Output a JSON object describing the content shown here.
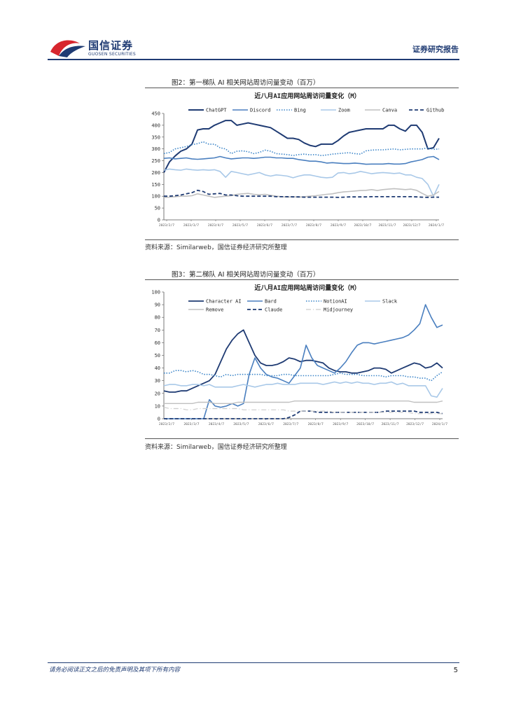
{
  "header": {
    "logo_cn": "国信证券",
    "logo_en": "GUOSEN SECURITIES",
    "report_type": "证券研究报告",
    "brand_color": "#1f3b73",
    "logo_red": "#d7262e"
  },
  "figures": [
    {
      "title": "图2：第一梯队 AI 相关网站周访问量变动（百万）",
      "source": "资料来源：Similarweb，国信证券经济研究所整理"
    },
    {
      "title": "图3：第二梯队 AI 相关网站周访问量变动（百万）",
      "source": "资料来源：Similarweb，国信证券经济研究所整理"
    }
  ],
  "footer": {
    "disclaimer": "请务必阅读正文之后的免责声明及其项下所有内容",
    "page_number": "5"
  },
  "chart_data": [
    {
      "type": "line",
      "title": "近八月AI应用网站周访问量变化（M）",
      "xlabel": "",
      "ylabel": "",
      "ylim": [
        0,
        450
      ],
      "yticks": [
        0,
        50,
        100,
        150,
        200,
        250,
        300,
        350,
        400,
        450
      ],
      "xtick_labels": [
        "2023/2/7",
        "2023/3/7",
        "2023/4/7",
        "2023/5/7",
        "2023/6/7",
        "2023/7/7",
        "2023/8/7",
        "2023/9/7",
        "2023/10/7",
        "2023/11/7",
        "2023/12/7",
        "2024/1/7"
      ],
      "legend_position": "top",
      "series": [
        {
          "name": "ChatGPT",
          "color": "#1f3b73",
          "dash": "solid",
          "width": 2,
          "values": [
            200,
            245,
            270,
            290,
            300,
            320,
            380,
            385,
            385,
            400,
            410,
            420,
            420,
            400,
            405,
            410,
            405,
            400,
            395,
            390,
            375,
            360,
            345,
            345,
            340,
            325,
            315,
            310,
            320,
            320,
            320,
            335,
            355,
            370,
            375,
            380,
            385,
            385,
            385,
            385,
            400,
            400,
            385,
            375,
            400,
            400,
            370,
            300,
            305,
            345
          ]
        },
        {
          "name": "Discord",
          "color": "#4a7fbf",
          "dash": "solid",
          "width": 1.6,
          "values": [
            260,
            262,
            258,
            260,
            262,
            258,
            256,
            258,
            260,
            262,
            268,
            262,
            258,
            260,
            262,
            262,
            260,
            262,
            265,
            265,
            262,
            262,
            260,
            260,
            255,
            252,
            248,
            248,
            245,
            240,
            242,
            240,
            238,
            238,
            240,
            238,
            235,
            236,
            236,
            236,
            238,
            236,
            236,
            238,
            245,
            250,
            255,
            265,
            268,
            255
          ]
        },
        {
          "name": "Bing",
          "color": "#3a84c8",
          "dash": "dotted",
          "width": 1.6,
          "values": [
            280,
            285,
            300,
            305,
            310,
            318,
            322,
            330,
            320,
            320,
            305,
            300,
            280,
            290,
            292,
            288,
            280,
            285,
            295,
            290,
            280,
            278,
            276,
            272,
            276,
            278,
            275,
            276,
            272,
            274,
            278,
            280,
            282,
            284,
            280,
            278,
            292,
            295,
            296,
            296,
            298,
            300,
            296,
            298,
            300,
            300,
            300,
            305,
            298,
            300
          ]
        },
        {
          "name": "Zoom",
          "color": "#a8c8e8",
          "dash": "solid",
          "width": 1.6,
          "values": [
            210,
            215,
            212,
            210,
            215,
            212,
            210,
            212,
            210,
            212,
            205,
            180,
            205,
            200,
            195,
            190,
            195,
            200,
            190,
            185,
            190,
            188,
            185,
            178,
            185,
            190,
            190,
            185,
            180,
            178,
            180,
            198,
            200,
            195,
            198,
            205,
            200,
            195,
            198,
            200,
            198,
            196,
            198,
            190,
            190,
            180,
            175,
            150,
            100,
            150
          ]
        },
        {
          "name": "Canva",
          "color": "#c0c0c0",
          "dash": "solid",
          "width": 1.6,
          "values": [
            95,
            96,
            98,
            100,
            100,
            102,
            110,
            105,
            100,
            95,
            98,
            100,
            102,
            108,
            110,
            112,
            108,
            106,
            108,
            104,
            100,
            98,
            96,
            98,
            96,
            98,
            100,
            102,
            105,
            108,
            110,
            115,
            118,
            120,
            122,
            124,
            125,
            128,
            124,
            128,
            130,
            132,
            130,
            128,
            130,
            125,
            112,
            100,
            105,
            120
          ]
        },
        {
          "name": "Github",
          "color": "#1f3b73",
          "dash": "dashed",
          "width": 1.8,
          "values": [
            100,
            100,
            102,
            105,
            110,
            115,
            125,
            120,
            108,
            110,
            112,
            105,
            105,
            102,
            100,
            100,
            100,
            100,
            100,
            100,
            98,
            98,
            98,
            97,
            97,
            96,
            96,
            96,
            96,
            96,
            96,
            95,
            96,
            97,
            97,
            97,
            97,
            98,
            98,
            98,
            98,
            98,
            98,
            98,
            98,
            97,
            96,
            95,
            96,
            96
          ]
        }
      ]
    },
    {
      "type": "line",
      "title": "近八月AI应用网站周访问量变化（M）",
      "xlabel": "",
      "ylabel": "",
      "ylim": [
        0,
        100
      ],
      "yticks": [
        0,
        10,
        20,
        30,
        40,
        50,
        60,
        70,
        80,
        90,
        100
      ],
      "xtick_labels": [
        "2023/2/7",
        "2023/3/7",
        "2023/4/7",
        "2023/5/7",
        "2023/6/7",
        "2023/7/7",
        "2023/8/7",
        "2023/9/7",
        "2023/10/7",
        "2023/11/7",
        "2023/12/7",
        "2024/1/7"
      ],
      "legend_position": "top",
      "series": [
        {
          "name": "Character AI",
          "color": "#1f3b73",
          "dash": "solid",
          "width": 1.8,
          "values": [
            22,
            21,
            21,
            22,
            22,
            24,
            26,
            28,
            30,
            35,
            45,
            55,
            62,
            67,
            70,
            60,
            50,
            44,
            42,
            42,
            43,
            45,
            48,
            47,
            45,
            46,
            46,
            45,
            44,
            40,
            38,
            37,
            37,
            36,
            36,
            37,
            38,
            40,
            40,
            39,
            36,
            38,
            40,
            42,
            44,
            43,
            40,
            41,
            44,
            40
          ]
        },
        {
          "name": "Bard",
          "color": "#4a7fbf",
          "dash": "solid",
          "width": 1.6,
          "values": [
            0,
            0,
            0,
            0,
            0,
            0,
            0,
            0,
            15,
            10,
            9,
            10,
            12,
            10,
            12,
            35,
            48,
            40,
            35,
            33,
            32,
            30,
            28,
            34,
            40,
            58,
            48,
            42,
            40,
            38,
            36,
            40,
            45,
            52,
            58,
            60,
            60,
            59,
            60,
            61,
            62,
            63,
            64,
            66,
            70,
            75,
            90,
            80,
            72,
            74
          ]
        },
        {
          "name": "NotionAI",
          "color": "#3a84c8",
          "dash": "dotted",
          "width": 1.6,
          "values": [
            36,
            36,
            38,
            38,
            37,
            38,
            37,
            35,
            35,
            34,
            33,
            35,
            34,
            35,
            35,
            35,
            35,
            35,
            34,
            34,
            34,
            35,
            35,
            34,
            34,
            34,
            34,
            34,
            34,
            34,
            35,
            36,
            35,
            35,
            35,
            34,
            34,
            34,
            34,
            33,
            34,
            34,
            34,
            33,
            33,
            32,
            32,
            30,
            34,
            37
          ]
        },
        {
          "name": "Slack",
          "color": "#a8c8e8",
          "dash": "solid",
          "width": 1.6,
          "values": [
            26,
            27,
            27,
            26,
            26,
            27,
            27,
            26,
            27,
            25,
            25,
            25,
            25,
            26,
            27,
            26,
            25,
            26,
            27,
            27,
            28,
            27,
            27,
            27,
            28,
            28,
            28,
            28,
            27,
            28,
            29,
            28,
            29,
            28,
            29,
            28,
            28,
            27,
            28,
            28,
            29,
            27,
            28,
            26,
            26,
            26,
            26,
            18,
            17,
            24
          ]
        },
        {
          "name": "Remove",
          "color": "#c0c0c0",
          "dash": "solid",
          "width": 1.4,
          "values": [
            12,
            12,
            12,
            12,
            12,
            12,
            13,
            13,
            13,
            12,
            12,
            12,
            12,
            13,
            13,
            13,
            13,
            13,
            13,
            13,
            13,
            13,
            13,
            14,
            14,
            14,
            14,
            14,
            14,
            14,
            14,
            14,
            14,
            14,
            14,
            14,
            14,
            14,
            14,
            14,
            14,
            14,
            14,
            14,
            13,
            13,
            13,
            13,
            13,
            14
          ]
        },
        {
          "name": "Claude",
          "color": "#1f3b73",
          "dash": "dashed",
          "width": 1.8,
          "values": [
            0,
            0,
            0,
            0,
            0,
            0,
            0,
            0,
            0,
            0,
            0,
            0,
            0,
            0,
            0,
            0,
            0,
            0,
            0,
            0,
            0,
            0,
            1,
            3,
            6,
            6,
            6,
            5,
            5,
            5,
            5,
            5,
            5,
            5,
            5,
            5,
            5,
            5,
            5,
            6,
            6,
            6,
            6,
            6,
            6,
            5,
            5,
            5,
            5,
            4
          ]
        },
        {
          "name": "Midjourney",
          "color": "#cccccc",
          "dash": "dashdot",
          "width": 1.2,
          "values": [
            9,
            8,
            8,
            8,
            7,
            7,
            8,
            8,
            8,
            8,
            8,
            8,
            8,
            8,
            7,
            7,
            7,
            7,
            7,
            7,
            7,
            7,
            6,
            6,
            6,
            6,
            6,
            6,
            6,
            6,
            5,
            5,
            5,
            5,
            5,
            5,
            5,
            5,
            5,
            5,
            5,
            5,
            5,
            5,
            4,
            4,
            4,
            4,
            4,
            4
          ]
        }
      ]
    }
  ]
}
